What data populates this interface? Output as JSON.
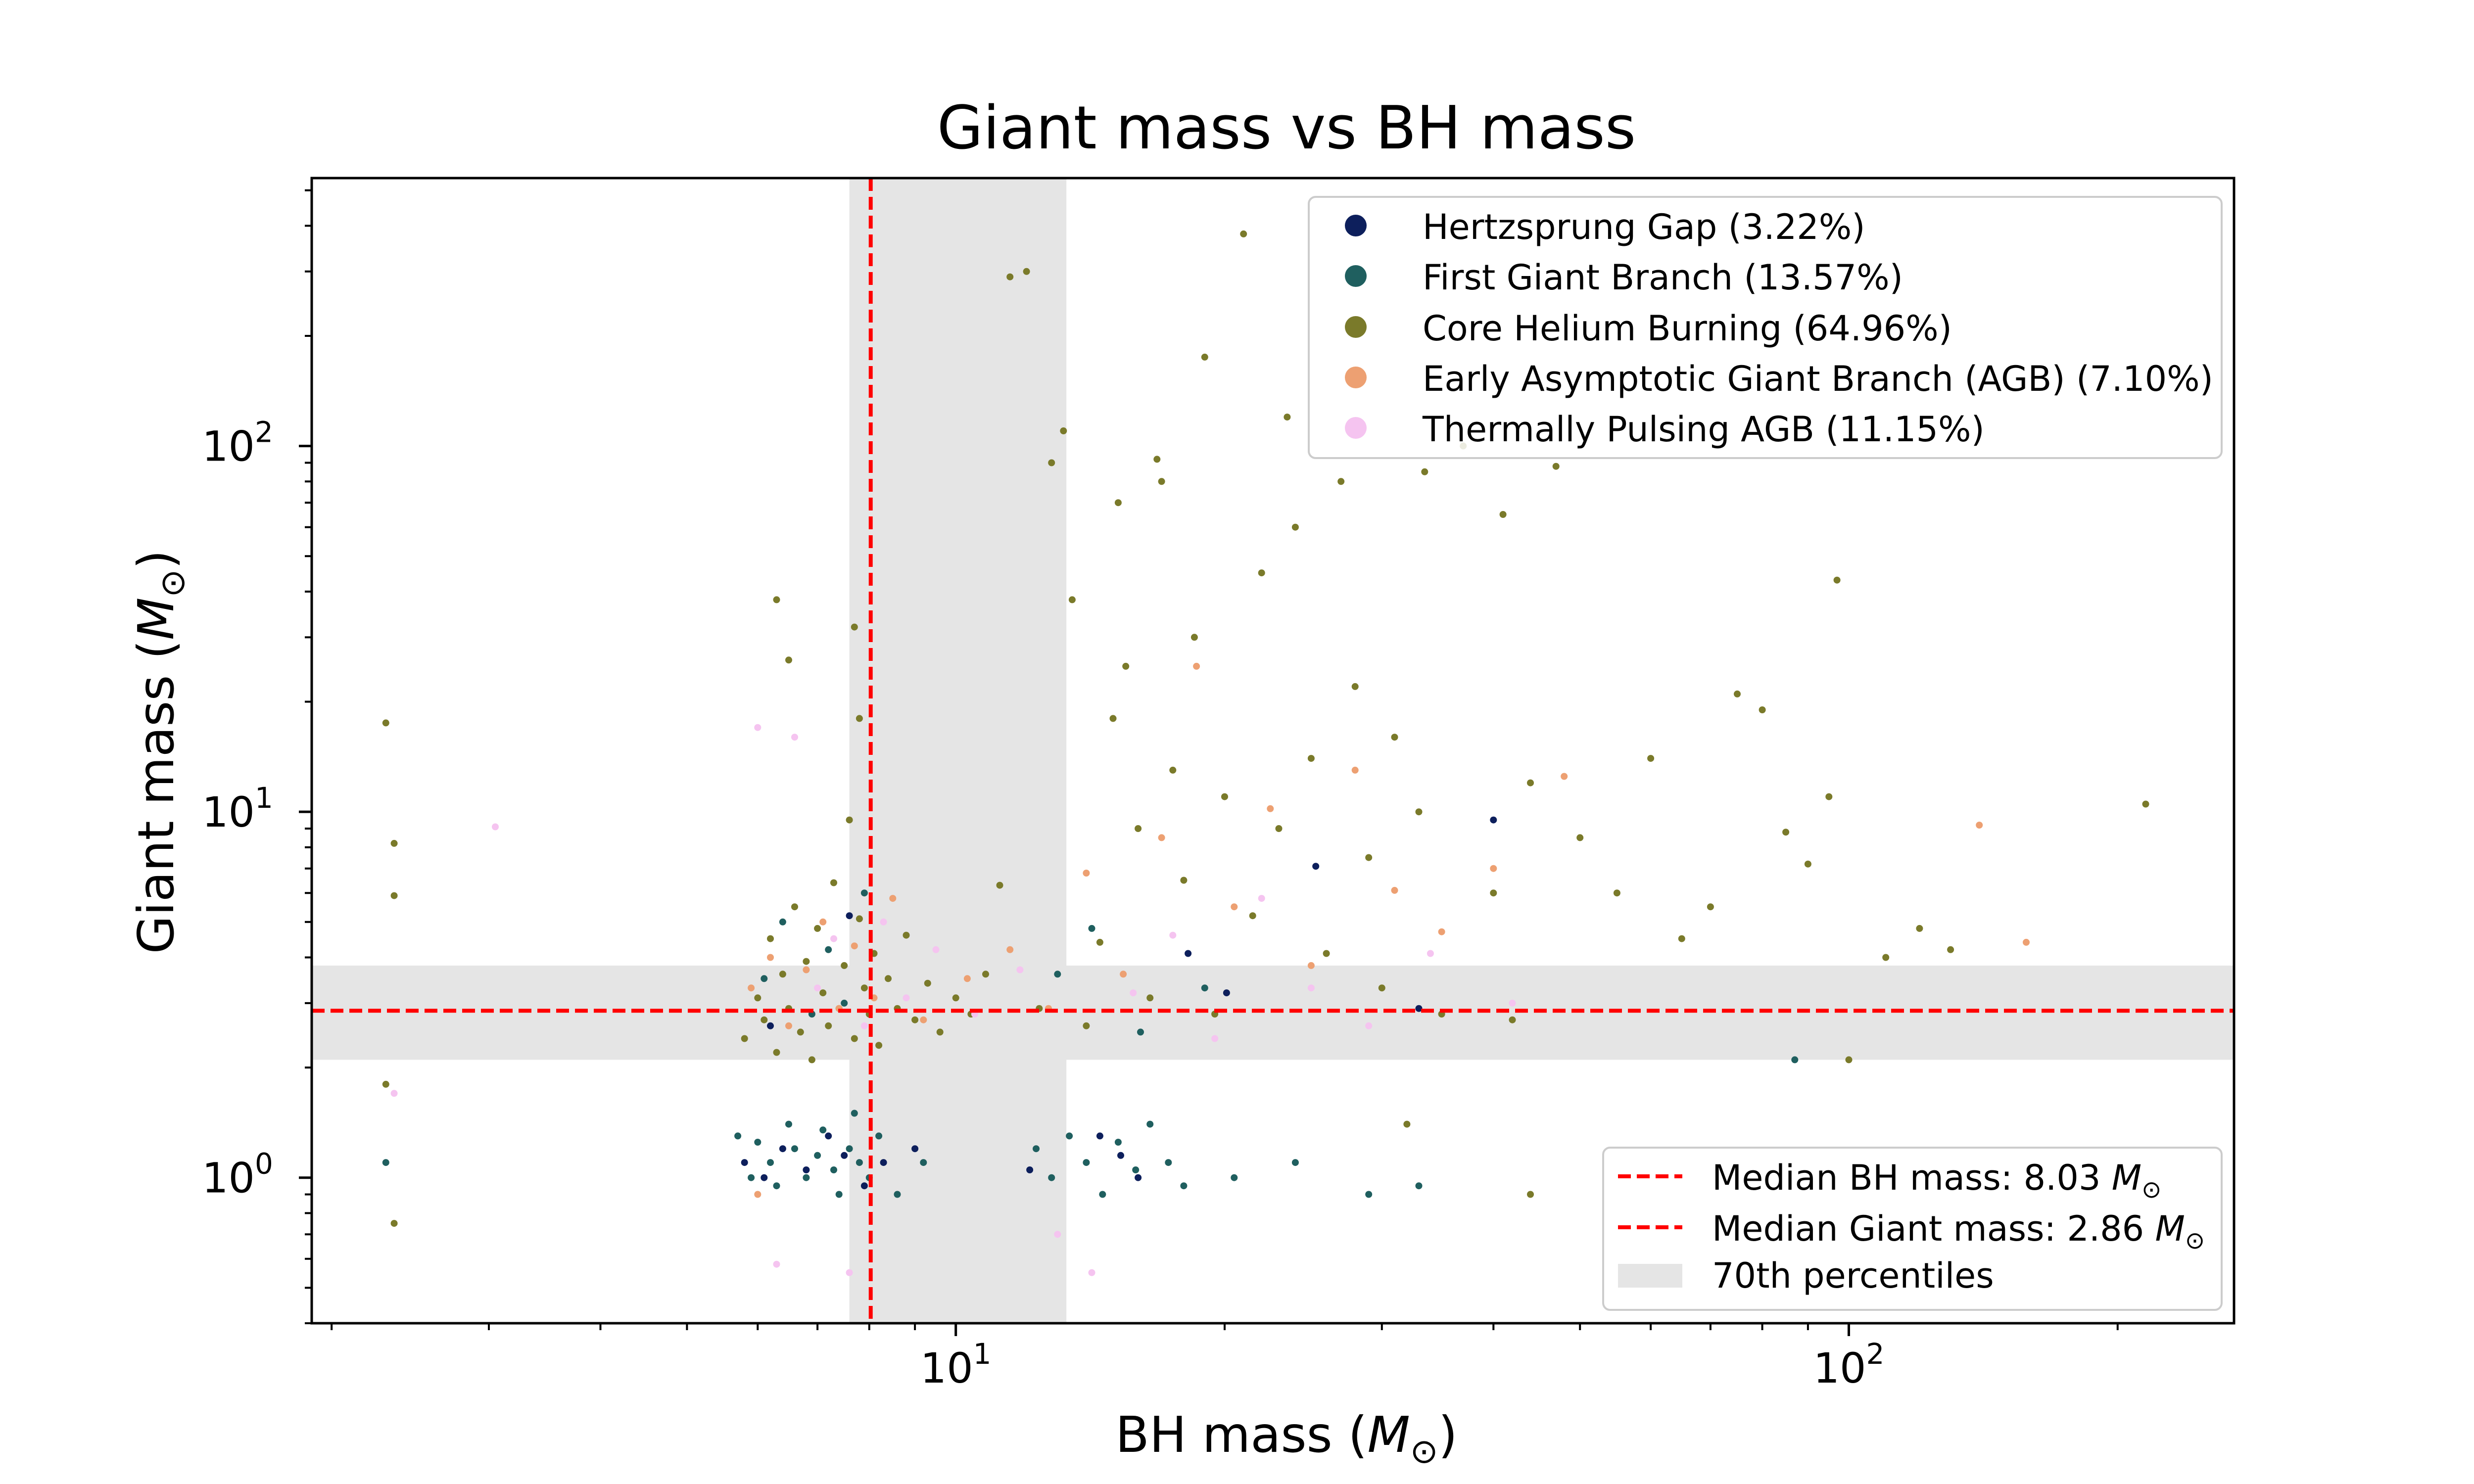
{
  "chart_data": {
    "type": "scatter",
    "title": "Giant mass vs BH mass",
    "xlabel": "BH mass (",
    "ylabel": "Giant mass (",
    "mass_symbol": "M",
    "mass_subscript": "⊙",
    "label_close": ")",
    "x_scale": "log",
    "y_scale": "log",
    "xlim": [
      1.9,
      270
    ],
    "ylim": [
      0.4,
      540
    ],
    "x_ticks": [
      {
        "value": 10,
        "base": "10",
        "exp": "1"
      },
      {
        "value": 100,
        "base": "10",
        "exp": "2"
      }
    ],
    "y_ticks": [
      {
        "value": 1,
        "base": "10",
        "exp": "0"
      },
      {
        "value": 10,
        "base": "10",
        "exp": "1"
      },
      {
        "value": 100,
        "base": "10",
        "exp": "2"
      }
    ],
    "series": [
      {
        "name": "Hertzsprung Gap (3.22%)",
        "color": "#0d1f5c",
        "points": [
          [
            5.8,
            1.1
          ],
          [
            6.1,
            1.0
          ],
          [
            6.4,
            1.2
          ],
          [
            6.8,
            1.05
          ],
          [
            7.2,
            1.3
          ],
          [
            7.5,
            1.15
          ],
          [
            7.9,
            0.95
          ],
          [
            8.3,
            1.1
          ],
          [
            9.0,
            1.2
          ],
          [
            12.1,
            1.05
          ],
          [
            14.5,
            1.3
          ],
          [
            16.0,
            1.0
          ],
          [
            20.1,
            3.2
          ],
          [
            25.3,
            7.1
          ],
          [
            33.0,
            2.9
          ],
          [
            40.0,
            9.5
          ],
          [
            6.2,
            2.6
          ],
          [
            7.6,
            5.2
          ],
          [
            15.3,
            1.15
          ],
          [
            18.2,
            4.1
          ]
        ]
      },
      {
        "name": "First Giant Branch (13.57%)",
        "color": "#1f5f5f",
        "points": [
          [
            2.3,
            1.1
          ],
          [
            5.7,
            1.3
          ],
          [
            5.9,
            1.0
          ],
          [
            6.0,
            1.25
          ],
          [
            6.2,
            1.1
          ],
          [
            6.3,
            0.95
          ],
          [
            6.5,
            1.4
          ],
          [
            6.6,
            1.2
          ],
          [
            6.8,
            1.0
          ],
          [
            7.0,
            1.15
          ],
          [
            7.1,
            1.35
          ],
          [
            7.3,
            1.05
          ],
          [
            7.4,
            0.9
          ],
          [
            7.6,
            1.2
          ],
          [
            7.7,
            1.5
          ],
          [
            7.8,
            1.1
          ],
          [
            8.0,
            1.0
          ],
          [
            8.2,
            1.3
          ],
          [
            8.6,
            0.9
          ],
          [
            9.2,
            1.1
          ],
          [
            12.3,
            1.2
          ],
          [
            12.8,
            1.0
          ],
          [
            13.4,
            1.3
          ],
          [
            14.0,
            1.1
          ],
          [
            14.6,
            0.9
          ],
          [
            15.2,
            1.25
          ],
          [
            15.9,
            1.05
          ],
          [
            16.5,
            1.4
          ],
          [
            17.3,
            1.1
          ],
          [
            18.0,
            0.95
          ],
          [
            20.5,
            1.0
          ],
          [
            24.0,
            1.1
          ],
          [
            29.0,
            0.9
          ],
          [
            33.0,
            0.95
          ],
          [
            87.0,
            2.1
          ],
          [
            6.1,
            3.5
          ],
          [
            6.4,
            5.0
          ],
          [
            6.9,
            2.8
          ],
          [
            7.2,
            4.2
          ],
          [
            7.5,
            3.0
          ],
          [
            7.9,
            6.0
          ],
          [
            13.0,
            3.6
          ],
          [
            14.2,
            4.8
          ],
          [
            16.1,
            2.5
          ],
          [
            19.0,
            3.3
          ]
        ]
      },
      {
        "name": "Core Helium Burning (64.96%)",
        "color": "#7a7a2a",
        "points": [
          [
            2.3,
            17.5
          ],
          [
            2.35,
            8.2
          ],
          [
            2.35,
            5.9
          ],
          [
            2.3,
            1.8
          ],
          [
            2.35,
            0.75
          ],
          [
            5.8,
            2.4
          ],
          [
            6.0,
            3.1
          ],
          [
            6.1,
            2.7
          ],
          [
            6.2,
            4.5
          ],
          [
            6.3,
            2.2
          ],
          [
            6.4,
            3.6
          ],
          [
            6.5,
            2.9
          ],
          [
            6.6,
            5.5
          ],
          [
            6.7,
            2.5
          ],
          [
            6.8,
            3.9
          ],
          [
            6.9,
            2.1
          ],
          [
            7.0,
            4.8
          ],
          [
            7.1,
            3.2
          ],
          [
            7.2,
            2.6
          ],
          [
            7.3,
            6.4
          ],
          [
            7.4,
            2.9
          ],
          [
            7.5,
            3.8
          ],
          [
            7.6,
            9.5
          ],
          [
            7.7,
            2.4
          ],
          [
            7.8,
            5.1
          ],
          [
            7.9,
            3.3
          ],
          [
            8.0,
            2.8
          ],
          [
            8.1,
            4.1
          ],
          [
            8.2,
            2.3
          ],
          [
            8.4,
            3.5
          ],
          [
            8.6,
            2.9
          ],
          [
            8.8,
            4.6
          ],
          [
            9.0,
            2.7
          ],
          [
            9.3,
            3.4
          ],
          [
            9.6,
            2.5
          ],
          [
            10.0,
            3.1
          ],
          [
            10.4,
            2.8
          ],
          [
            10.8,
            3.6
          ],
          [
            11.2,
            6.3
          ],
          [
            11.5,
            290
          ],
          [
            12.0,
            300
          ],
          [
            12.4,
            2.9
          ],
          [
            12.8,
            90
          ],
          [
            13.2,
            110
          ],
          [
            13.5,
            38
          ],
          [
            14.0,
            2.6
          ],
          [
            14.5,
            4.4
          ],
          [
            15.0,
            18
          ],
          [
            15.5,
            25
          ],
          [
            16.0,
            9.0
          ],
          [
            16.5,
            3.1
          ],
          [
            17.0,
            80
          ],
          [
            17.5,
            13
          ],
          [
            18.0,
            6.5
          ],
          [
            18.5,
            30
          ],
          [
            19.0,
            175
          ],
          [
            19.5,
            2.8
          ],
          [
            20.0,
            11
          ],
          [
            21.0,
            380
          ],
          [
            21.5,
            5.2
          ],
          [
            22.0,
            45
          ],
          [
            23.0,
            9.0
          ],
          [
            24.0,
            60
          ],
          [
            25.0,
            14
          ],
          [
            26.0,
            4.1
          ],
          [
            27.0,
            80
          ],
          [
            28.0,
            22
          ],
          [
            29.0,
            7.5
          ],
          [
            30.0,
            3.3
          ],
          [
            31.0,
            16
          ],
          [
            32.0,
            1.4
          ],
          [
            33.0,
            10
          ],
          [
            35.0,
            2.8
          ],
          [
            37.0,
            100
          ],
          [
            40.0,
            6.0
          ],
          [
            41.0,
            65
          ],
          [
            42.0,
            2.7
          ],
          [
            44.0,
            12
          ],
          [
            47.0,
            88
          ],
          [
            50.0,
            8.5
          ],
          [
            55.0,
            6.0
          ],
          [
            60.0,
            14
          ],
          [
            65.0,
            4.5
          ],
          [
            70.0,
            5.5
          ],
          [
            75.0,
            21
          ],
          [
            80.0,
            19
          ],
          [
            85.0,
            8.8
          ],
          [
            90.0,
            7.2
          ],
          [
            95.0,
            11
          ],
          [
            97.0,
            43
          ],
          [
            100.0,
            2.1
          ],
          [
            110.0,
            4.0
          ],
          [
            120.0,
            4.8
          ],
          [
            130.0,
            4.2
          ],
          [
            215.0,
            10.5
          ],
          [
            6.3,
            38
          ],
          [
            6.5,
            26
          ],
          [
            7.7,
            32
          ],
          [
            7.8,
            18
          ],
          [
            15.2,
            70
          ],
          [
            16.8,
            92
          ],
          [
            23.5,
            120
          ],
          [
            33.5,
            85
          ],
          [
            44.0,
            0.9
          ]
        ]
      },
      {
        "name": "Early Asymptotic Giant Branch (AGB) (7.10%)",
        "color": "#eda072",
        "points": [
          [
            5.9,
            3.3
          ],
          [
            6.2,
            4.0
          ],
          [
            6.5,
            2.6
          ],
          [
            6.8,
            3.7
          ],
          [
            7.1,
            5.0
          ],
          [
            7.4,
            2.9
          ],
          [
            7.7,
            4.3
          ],
          [
            8.1,
            3.1
          ],
          [
            8.5,
            5.8
          ],
          [
            9.2,
            2.7
          ],
          [
            10.3,
            3.5
          ],
          [
            11.5,
            4.2
          ],
          [
            12.7,
            2.9
          ],
          [
            14.0,
            6.8
          ],
          [
            15.4,
            3.6
          ],
          [
            17.0,
            8.5
          ],
          [
            18.6,
            25
          ],
          [
            20.5,
            5.5
          ],
          [
            22.5,
            10.2
          ],
          [
            25.0,
            3.8
          ],
          [
            28.0,
            13
          ],
          [
            31.0,
            6.1
          ],
          [
            35.0,
            4.7
          ],
          [
            40.0,
            7.0
          ],
          [
            48.0,
            12.5
          ],
          [
            140.0,
            9.2
          ],
          [
            158.0,
            4.4
          ],
          [
            6.0,
            0.9
          ]
        ]
      },
      {
        "name": "Thermally Pulsing AGB (11.15%)",
        "color": "#f5c4f0",
        "points": [
          [
            2.35,
            1.7
          ],
          [
            3.05,
            9.1
          ],
          [
            6.0,
            17
          ],
          [
            6.3,
            0.58
          ],
          [
            6.6,
            16
          ],
          [
            7.0,
            3.3
          ],
          [
            7.3,
            4.5
          ],
          [
            7.6,
            0.55
          ],
          [
            7.9,
            2.6
          ],
          [
            8.3,
            5.0
          ],
          [
            8.8,
            3.1
          ],
          [
            9.5,
            4.2
          ],
          [
            10.5,
            2.8
          ],
          [
            11.8,
            3.7
          ],
          [
            13.0,
            0.7
          ],
          [
            14.2,
            0.55
          ],
          [
            15.8,
            3.2
          ],
          [
            17.5,
            4.6
          ],
          [
            19.5,
            2.4
          ],
          [
            22.0,
            5.8
          ],
          [
            25.0,
            3.3
          ],
          [
            29.0,
            2.6
          ],
          [
            34.0,
            4.1
          ],
          [
            42.0,
            3.0
          ]
        ]
      }
    ],
    "medians": [
      {
        "label": "Median BH mass: 8.03 ",
        "value": 8.03,
        "axis": "x",
        "color": "#ff0000"
      },
      {
        "label": "Median Giant mass: 2.86 ",
        "value": 2.86,
        "axis": "y",
        "color": "#ff0000"
      }
    ],
    "percentile_band": {
      "label": "70th percentiles",
      "x_range": [
        7.6,
        13.3
      ],
      "y_range": [
        2.1,
        3.8
      ],
      "color": "#e5e5e5"
    },
    "grid": false,
    "legend_position": "top-right",
    "reference_legend_position": "bottom-right"
  }
}
